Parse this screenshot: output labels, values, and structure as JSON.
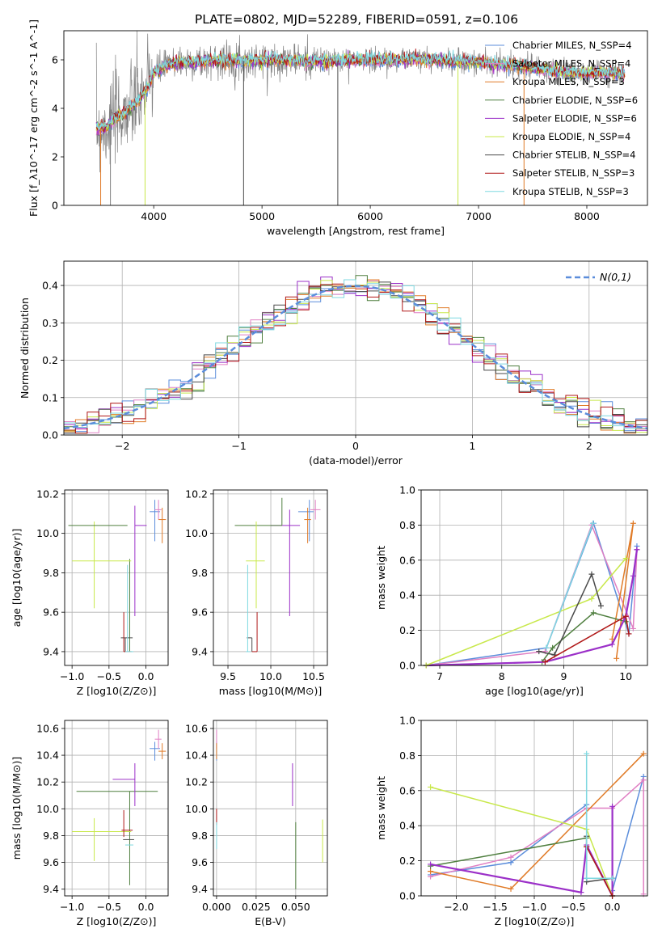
{
  "title": "PLATE=0802, MJD=52289, FIBERID=0591, z=0.106",
  "colors": {
    "chabrier_miles": "#5b8ddb",
    "salpeter_miles": "#e07fc3",
    "kroupa_miles": "#e07b28",
    "chabrier_elodie": "#4f7f3f",
    "salpeter_elodie": "#9b30c8",
    "kroupa_elodie": "#c8e84a",
    "chabrier_stelib": "#4a4a4a",
    "salpeter_stelib": "#b01818",
    "kroupa_stelib": "#7fd8e0",
    "data_gray": "#808080",
    "grid": "#b0b0b0"
  },
  "chart_data": [
    {
      "panel": "spectrum",
      "type": "line",
      "xlabel": "wavelength [Angstrom, rest frame]",
      "ylabel": "Flux [f_λ10^-17 erg cm^-2 s^-1 A^-1]",
      "xlim": [
        3170,
        8560
      ],
      "ylim": [
        0,
        7.2
      ],
      "xticks": [
        "4000",
        "5000",
        "6000",
        "7000",
        "8000"
      ],
      "yticks": [
        "0",
        "2",
        "4",
        "6"
      ],
      "legend_position": "right",
      "legend": [
        {
          "label": "Chabrier MILES, N_SSP=4",
          "color_key": "chabrier_miles"
        },
        {
          "label": "Salpeter MILES, N_SSP=4",
          "color_key": "salpeter_miles"
        },
        {
          "label": "Kroupa MILES, N_SSP=3",
          "color_key": "kroupa_miles"
        },
        {
          "label": "Chabrier ELODIE, N_SSP=6",
          "color_key": "chabrier_elodie"
        },
        {
          "label": "Salpeter ELODIE, N_SSP=6",
          "color_key": "salpeter_elodie"
        },
        {
          "label": "Kroupa ELODIE, N_SSP=4",
          "color_key": "kroupa_elodie"
        },
        {
          "label": "Chabrier STELIB, N_SSP=4",
          "color_key": "chabrier_stelib"
        },
        {
          "label": "Salpeter STELIB, N_SSP=3",
          "color_key": "salpeter_stelib"
        },
        {
          "label": "Kroupa STELIB, N_SSP=3",
          "color_key": "kroupa_stelib"
        }
      ],
      "continuum": {
        "x": [
          3470,
          3550,
          3650,
          3750,
          3850,
          3950,
          4000,
          4100,
          4200,
          4400,
          4600,
          4800,
          5000,
          5200,
          5400,
          5600,
          5800,
          6000,
          6200,
          6400,
          6600,
          6800,
          7000,
          7200,
          7400,
          7600,
          7800,
          8000,
          8200,
          8350
        ],
        "y": [
          3.2,
          3.2,
          3.6,
          3.9,
          4.3,
          4.9,
          5.5,
          5.7,
          5.9,
          5.9,
          6.0,
          5.95,
          6.0,
          6.0,
          5.95,
          5.95,
          6.0,
          6.0,
          6.0,
          6.05,
          6.0,
          5.95,
          5.9,
          5.8,
          5.75,
          5.6,
          5.5,
          5.45,
          5.5,
          5.4
        ]
      }
    },
    {
      "panel": "residuals",
      "type": "line",
      "xlabel": "(data-model)/error",
      "ylabel": "Normed distribution",
      "xlim": [
        -2.5,
        2.5
      ],
      "ylim": [
        0,
        0.465
      ],
      "xticks": [
        "−2",
        "−1",
        "0",
        "1",
        "2"
      ],
      "yticks": [
        "0.0",
        "0.1",
        "0.2",
        "0.3",
        "0.4"
      ],
      "legend": "N(0,1)",
      "legend_position": "upper right",
      "histogram_bin_width": 0.1
    },
    {
      "panel": "age_vs_Z",
      "type": "scatter",
      "xlabel": "Z [log10(Z/Z⊙)]",
      "ylabel": "age  [log10(age/yr)]",
      "xlim": [
        -1.1,
        0.3
      ],
      "ylim": [
        9.33,
        10.22
      ],
      "xticks": [
        "−1.0",
        "−0.5",
        "0.0"
      ],
      "yticks": [
        "9.4",
        "9.6",
        "9.8",
        "10.0",
        "10.2"
      ],
      "points": [
        {
          "key": "chabrier_miles",
          "x": 0.12,
          "y": 10.11,
          "xerr": [
            0.07,
            0.07
          ],
          "yerr": [
            0.15,
            0.06
          ]
        },
        {
          "key": "salpeter_miles",
          "x": 0.17,
          "y": 10.12,
          "xerr": [
            0.05,
            0.04
          ],
          "yerr": [
            0.05,
            0.05
          ]
        },
        {
          "key": "kroupa_miles",
          "x": 0.22,
          "y": 10.07,
          "xerr": [
            0.05,
            0.05
          ],
          "yerr": [
            0.12,
            0.06
          ]
        },
        {
          "key": "chabrier_elodie",
          "x": -0.22,
          "y": 9.4,
          "xerr": [
            0.03,
            0.03
          ],
          "yerr": [
            0.0,
            0.47
          ]
        },
        {
          "key": "salpeter_elodie",
          "x": -0.15,
          "y": 10.04,
          "xerr": [
            0.0,
            0.16
          ],
          "yerr": [
            0.46,
            0.1
          ]
        },
        {
          "key": "kroupa_elodie",
          "x": -0.7,
          "y": 9.86,
          "xerr": [
            0.3,
            0.5
          ],
          "yerr": [
            0.24,
            0.2
          ]
        },
        {
          "key": "chabrier_stelib",
          "x": -0.28,
          "y": 9.47,
          "xerr": [
            0.06,
            0.1
          ],
          "yerr": [
            0.07,
            0.0
          ]
        },
        {
          "key": "salpeter_stelib",
          "x": -0.3,
          "y": 9.4,
          "xerr": [
            0.0,
            0.1
          ],
          "yerr": [
            0.0,
            0.2
          ]
        },
        {
          "key": "kroupa_stelib",
          "x": -0.25,
          "y": 9.4,
          "xerr": [
            0.03,
            0.08
          ],
          "yerr": [
            0.0,
            0.44
          ]
        },
        {
          "key": "chabrier_elodie",
          "x": -0.55,
          "y": 10.04,
          "xerr": [
            0.5,
            0.3
          ],
          "yerr": [
            0.0,
            0.0
          ]
        }
      ]
    },
    {
      "panel": "age_vs_mass",
      "type": "scatter",
      "xlabel": "mass [log10(M/M⊙)]",
      "ylabel": "",
      "xlim": [
        9.33,
        10.66
      ],
      "ylim": [
        9.33,
        10.22
      ],
      "xticks": [
        "9.5",
        "10.0",
        "10.5"
      ],
      "yticks": [
        "9.4",
        "9.6",
        "9.8",
        "10.0",
        "10.2"
      ],
      "points": [
        {
          "key": "chabrier_miles",
          "x": 10.45,
          "y": 10.11,
          "xerr": [
            0.13,
            0.05
          ],
          "yerr": [
            0.15,
            0.06
          ]
        },
        {
          "key": "salpeter_miles",
          "x": 10.52,
          "y": 10.12,
          "xerr": [
            0.06,
            0.06
          ],
          "yerr": [
            0.05,
            0.05
          ]
        },
        {
          "key": "kroupa_miles",
          "x": 10.43,
          "y": 10.07,
          "xerr": [
            0.04,
            0.04
          ],
          "yerr": [
            0.12,
            0.06
          ]
        },
        {
          "key": "salpeter_elodie",
          "x": 10.22,
          "y": 10.04,
          "xerr": [
            0.22,
            0.12
          ],
          "yerr": [
            0.46,
            0.08
          ]
        },
        {
          "key": "chabrier_elodie",
          "x": 10.13,
          "y": 10.04,
          "xerr": [
            0.55,
            0.0
          ],
          "yerr": [
            0.0,
            0.14
          ]
        },
        {
          "key": "kroupa_elodie",
          "x": 9.83,
          "y": 9.86,
          "xerr": [
            0.12,
            0.1
          ],
          "yerr": [
            0.24,
            0.2
          ]
        },
        {
          "key": "chabrier_stelib",
          "x": 9.78,
          "y": 9.47,
          "xerr": [
            0.06,
            0.0
          ],
          "yerr": [
            0.07,
            0.0
          ]
        },
        {
          "key": "salpeter_stelib",
          "x": 9.84,
          "y": 9.4,
          "xerr": [
            0.06,
            0.0
          ],
          "yerr": [
            0.0,
            0.2
          ]
        },
        {
          "key": "kroupa_stelib",
          "x": 9.73,
          "y": 9.4,
          "xerr": [
            0.02,
            0.03
          ],
          "yerr": [
            0.0,
            0.44
          ]
        }
      ]
    },
    {
      "panel": "weight_vs_age",
      "type": "line",
      "xlabel": "age  [log10(age/yr)]",
      "ylabel": "mass weight",
      "xlim": [
        6.7,
        10.35
      ],
      "ylim": [
        0,
        1.0
      ],
      "xticks": [
        "7",
        "8",
        "9",
        "10"
      ],
      "yticks": [
        "0.0",
        "0.2",
        "0.4",
        "0.6",
        "0.8",
        "1.0"
      ],
      "series": [
        {
          "key": "chabrier_miles",
          "x": [
            6.78,
            8.72,
            9.48,
            10.05,
            10.18
          ],
          "y": [
            0.0,
            0.1,
            0.81,
            0.18,
            0.68
          ]
        },
        {
          "key": "salpeter_miles",
          "x": [
            6.78,
            8.7,
            9.45,
            10.12,
            10.18
          ],
          "y": [
            0.0,
            0.08,
            0.8,
            0.21,
            0.66
          ]
        },
        {
          "key": "kroupa_miles",
          "x": [
            9.85,
            10.12,
            9.78
          ],
          "y": [
            0.04,
            0.81,
            0.15
          ]
        },
        {
          "key": "chabrier_elodie",
          "x": [
            6.78,
            8.65,
            8.82,
            9.48,
            10.0
          ],
          "y": [
            0.0,
            0.02,
            0.1,
            0.3,
            0.25
          ]
        },
        {
          "key": "salpeter_elodie",
          "x": [
            6.78,
            8.7,
            9.78,
            10.0,
            10.12,
            10.18
          ],
          "y": [
            0.0,
            0.02,
            0.12,
            0.28,
            0.51,
            0.66
          ]
        },
        {
          "key": "kroupa_elodie",
          "x": [
            6.78,
            9.45,
            10.0
          ],
          "y": [
            0.0,
            0.38,
            0.61
          ]
        },
        {
          "key": "chabrier_stelib",
          "x": [
            8.6,
            8.85,
            9.45,
            9.6
          ],
          "y": [
            0.08,
            0.06,
            0.52,
            0.34
          ]
        },
        {
          "key": "salpeter_stelib",
          "x": [
            8.7,
            10.0,
            10.05
          ],
          "y": [
            0.02,
            0.28,
            0.18
          ]
        },
        {
          "key": "kroupa_stelib",
          "x": [
            8.72,
            9.47
          ],
          "y": [
            0.1,
            0.81
          ]
        }
      ]
    },
    {
      "panel": "mass_vs_Z",
      "type": "scatter",
      "xlabel": "Z [log10(Z/Z⊙)]",
      "ylabel": "mass [log10(M/M⊙)]",
      "xlim": [
        -1.1,
        0.3
      ],
      "ylim": [
        9.35,
        10.66
      ],
      "xticks": [
        "−1.0",
        "−0.5",
        "0.0"
      ],
      "yticks": [
        "9.4",
        "9.6",
        "9.8",
        "10.0",
        "10.2",
        "10.4",
        "10.6"
      ],
      "points": [
        {
          "key": "chabrier_miles",
          "x": 0.12,
          "y": 10.45,
          "xerr": [
            0.07,
            0.07
          ],
          "yerr": [
            0.09,
            0.05
          ]
        },
        {
          "key": "salpeter_miles",
          "x": 0.17,
          "y": 10.52,
          "xerr": [
            0.05,
            0.04
          ],
          "yerr": [
            0.07,
            0.07
          ]
        },
        {
          "key": "kroupa_miles",
          "x": 0.22,
          "y": 10.43,
          "xerr": [
            0.05,
            0.05
          ],
          "yerr": [
            0.06,
            0.06
          ]
        },
        {
          "key": "chabrier_elodie",
          "x": -0.22,
          "y": 10.13,
          "xerr": [
            0.72,
            0.38
          ],
          "yerr": [
            0.7,
            0.0
          ]
        },
        {
          "key": "salpeter_elodie",
          "x": -0.15,
          "y": 10.22,
          "xerr": [
            0.3,
            0.0
          ],
          "yerr": [
            0.2,
            0.12
          ]
        },
        {
          "key": "kroupa_elodie",
          "x": -0.7,
          "y": 9.83,
          "xerr": [
            0.3,
            0.5
          ],
          "yerr": [
            0.22,
            0.1
          ]
        },
        {
          "key": "chabrier_stelib",
          "x": -0.28,
          "y": 9.77,
          "xerr": [
            0.03,
            0.12
          ],
          "yerr": [
            0.0,
            0.0
          ]
        },
        {
          "key": "salpeter_stelib",
          "x": -0.3,
          "y": 9.84,
          "xerr": [
            0.03,
            0.12
          ],
          "yerr": [
            0.05,
            0.15
          ]
        },
        {
          "key": "kroupa_stelib",
          "x": -0.25,
          "y": 9.73,
          "xerr": [
            0.03,
            0.08
          ],
          "yerr": [
            0.0,
            0.0
          ]
        }
      ]
    },
    {
      "panel": "mass_vs_ebv",
      "type": "scatter",
      "xlabel": "E(B-V)",
      "ylabel": "",
      "xlim": [
        -0.002,
        0.07
      ],
      "ylim": [
        9.35,
        10.66
      ],
      "xticks": [
        "0.000",
        "0.025",
        "0.050"
      ],
      "yticks": [
        "9.4",
        "9.6",
        "9.8",
        "10.0",
        "10.2",
        "10.4",
        "10.6"
      ],
      "points": [
        {
          "key": "chabrier_miles",
          "x": 0.0,
          "y": 10.45,
          "xerr": [
            0,
            0
          ],
          "yerr": [
            0.09,
            0.05
          ]
        },
        {
          "key": "salpeter_miles",
          "x": 0.0,
          "y": 10.52,
          "xerr": [
            0,
            0
          ],
          "yerr": [
            0.07,
            0.07
          ]
        },
        {
          "key": "kroupa_miles",
          "x": 0.0,
          "y": 10.43,
          "xerr": [
            0,
            0
          ],
          "yerr": [
            0.06,
            0.06
          ]
        },
        {
          "key": "chabrier_elodie",
          "x": 0.05,
          "y": 9.8,
          "xerr": [
            0,
            0
          ],
          "yerr": [
            0.4,
            0.1
          ]
        },
        {
          "key": "salpeter_elodie",
          "x": 0.048,
          "y": 10.22,
          "xerr": [
            0,
            0
          ],
          "yerr": [
            0.2,
            0.12
          ]
        },
        {
          "key": "kroupa_elodie",
          "x": 0.067,
          "y": 9.8,
          "xerr": [
            0,
            0
          ],
          "yerr": [
            0.2,
            0.12
          ]
        },
        {
          "key": "salpeter_stelib",
          "x": 0.0,
          "y": 9.94,
          "xerr": [
            0,
            0
          ],
          "yerr": [
            0.06,
            0.06
          ]
        },
        {
          "key": "kroupa_stelib",
          "x": 0.0,
          "y": 9.8,
          "xerr": [
            0,
            0
          ],
          "yerr": [
            0.1,
            0.1
          ]
        }
      ]
    },
    {
      "panel": "weight_vs_Z",
      "type": "line",
      "xlabel": "Z [log10(Z/Z⊙)]",
      "ylabel": "mass weight",
      "xlim": [
        -2.45,
        0.45
      ],
      "ylim": [
        0,
        1.0
      ],
      "xticks": [
        "−2.0",
        "−1.5",
        "−1.0",
        "−0.5",
        "0.0"
      ],
      "yticks": [
        "0.0",
        "0.2",
        "0.4",
        "0.6",
        "0.8",
        "1.0"
      ],
      "series": [
        {
          "key": "chabrier_miles",
          "x": [
            -2.33,
            -1.3,
            -0.33,
            -0.33,
            0.0,
            0.0,
            0.4
          ],
          "y": [
            0.12,
            0.19,
            0.52,
            0.1,
            0.1,
            0.03,
            0.68
          ]
        },
        {
          "key": "salpeter_miles",
          "x": [
            -2.33,
            -1.3,
            -0.33,
            0.0,
            0.4,
            0.4
          ],
          "y": [
            0.11,
            0.22,
            0.5,
            0.5,
            0.66,
            0.01
          ]
        },
        {
          "key": "kroupa_miles",
          "x": [
            -2.33,
            -1.3,
            0.4
          ],
          "y": [
            0.14,
            0.04,
            0.81
          ]
        },
        {
          "key": "chabrier_elodie",
          "x": [
            -2.33,
            -0.33,
            -0.33,
            0.0
          ],
          "y": [
            0.17,
            0.33,
            0.28,
            0.0
          ]
        },
        {
          "key": "salpeter_elodie",
          "x": [
            -2.33,
            -0.4,
            -0.33,
            0.0,
            0.0
          ],
          "y": [
            0.18,
            0.02,
            0.29,
            0.0,
            0.51
          ]
        },
        {
          "key": "kroupa_elodie",
          "x": [
            -2.33,
            -0.33,
            -0.33,
            0.0
          ],
          "y": [
            0.62,
            0.38,
            0.38,
            0.0
          ]
        },
        {
          "key": "chabrier_stelib",
          "x": [
            -0.33,
            -0.33,
            0.0
          ],
          "y": [
            0.34,
            0.08,
            0.1
          ]
        },
        {
          "key": "salpeter_stelib",
          "x": [
            -0.33,
            0.0
          ],
          "y": [
            0.28,
            0.0
          ]
        },
        {
          "key": "kroupa_stelib",
          "x": [
            -0.33,
            -0.33,
            0.0
          ],
          "y": [
            0.81,
            0.1,
            0.1
          ]
        }
      ]
    }
  ]
}
